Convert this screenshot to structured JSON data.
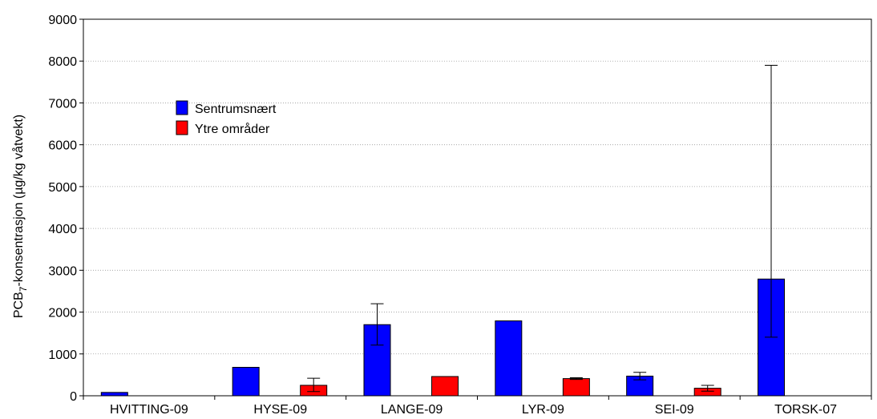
{
  "chart_data": {
    "type": "bar",
    "title": "",
    "xlabel": "",
    "ylabel": "PCB",
    "ylabel_subscript": "7",
    "ylabel_suffix": "-konsentrasjon (µg/kg våtvekt)",
    "ylim": [
      0,
      9000
    ],
    "yticks": [
      0,
      1000,
      2000,
      3000,
      4000,
      5000,
      6000,
      7000,
      8000,
      9000
    ],
    "grid": "horizontal dotted",
    "legend_position": "top-left",
    "categories": [
      "HVITTING-09",
      "HYSE-09",
      "LANGE-09",
      "LYR-09",
      "SEI-09",
      "TORSK-07"
    ],
    "series": [
      {
        "name": "Sentrumsnært",
        "color": "#0000ff",
        "values": [
          80,
          680,
          1700,
          1790,
          470,
          2790
        ],
        "error_low": [
          null,
          null,
          1210,
          null,
          380,
          1400
        ],
        "error_high": [
          null,
          null,
          2200,
          null,
          560,
          7900
        ]
      },
      {
        "name": "Ytre områder",
        "color": "#ff0000",
        "values": [
          null,
          250,
          460,
          410,
          180,
          null
        ],
        "error_low": [
          null,
          100,
          null,
          390,
          110,
          null
        ],
        "error_high": [
          null,
          420,
          null,
          430,
          250,
          null
        ]
      }
    ]
  }
}
